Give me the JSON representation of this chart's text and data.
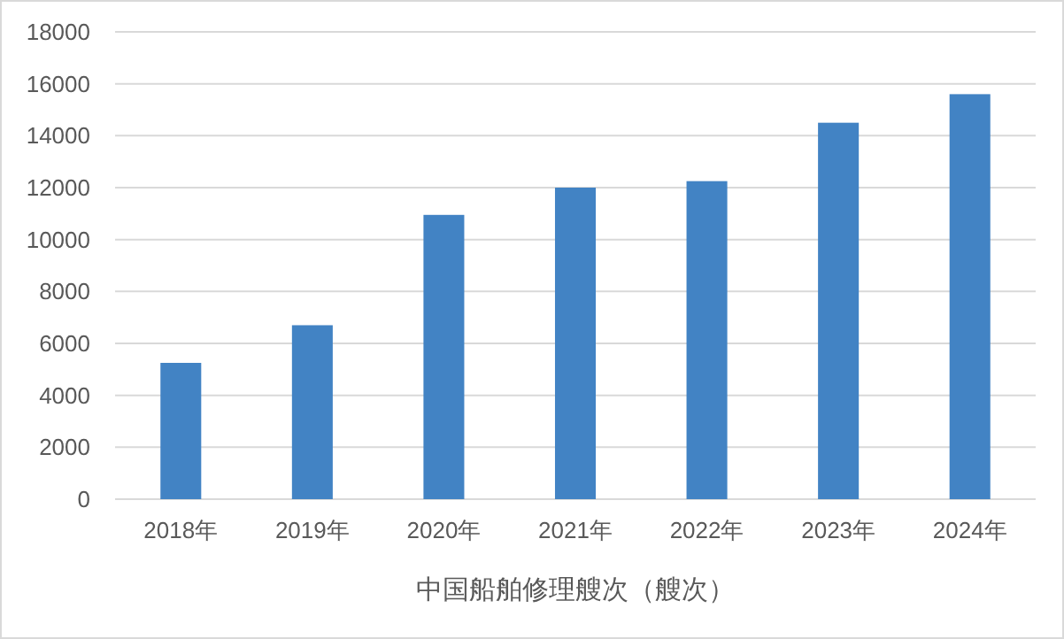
{
  "chart_data": {
    "type": "bar",
    "title": "中国船舶修理艘次（艘次）",
    "categories": [
      "2018年",
      "2019年",
      "2020年",
      "2021年",
      "2022年",
      "2023年",
      "2024年"
    ],
    "series": [
      {
        "color": "#4283c4",
        "values": [
          5250,
          6700,
          10950,
          12000,
          12250,
          14500,
          15600
        ]
      }
    ],
    "ylim": [
      0,
      18000
    ],
    "yticks": [
      0,
      2000,
      4000,
      6000,
      8000,
      10000,
      12000,
      14000,
      16000,
      18000
    ],
    "grid": "y"
  }
}
